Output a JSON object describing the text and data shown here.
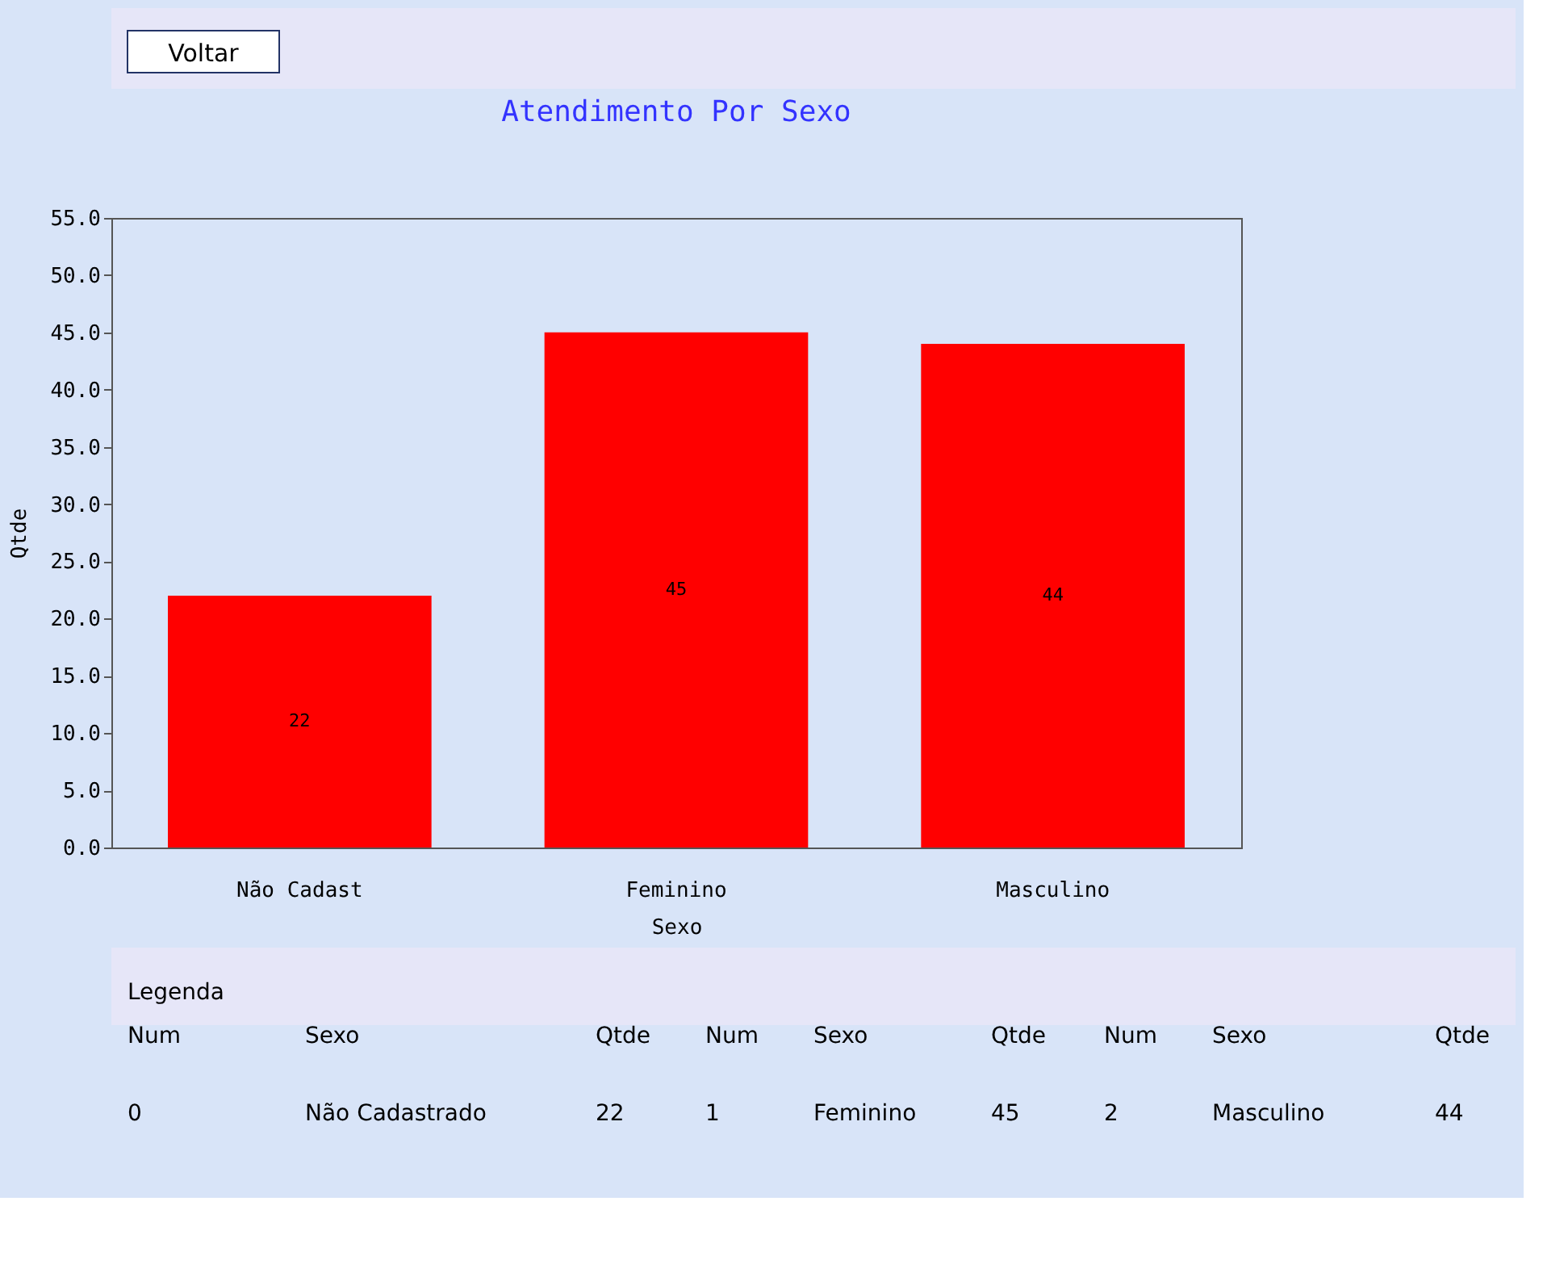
{
  "chart_data": {
    "type": "bar",
    "title": "Atendimento Por Sexo",
    "xlabel": "Sexo",
    "ylabel": "Qtde",
    "categories": [
      "Não Cadast",
      "Feminino",
      "Masculino"
    ],
    "values": [
      22,
      45,
      44
    ],
    "color": "#ff0000",
    "ylim": [
      0,
      55
    ],
    "yticks": [
      {
        "value": 0,
        "label": "0.0"
      },
      {
        "value": 5,
        "label": "5.0"
      },
      {
        "value": 10,
        "label": "10.0"
      },
      {
        "value": 15,
        "label": "15.0"
      },
      {
        "value": 20,
        "label": "20.0"
      },
      {
        "value": 25,
        "label": "25.0"
      },
      {
        "value": 30,
        "label": "30.0"
      },
      {
        "value": 35,
        "label": "35.0"
      },
      {
        "value": 40,
        "label": "40.0"
      },
      {
        "value": 45,
        "label": "45.0"
      },
      {
        "value": 50,
        "label": "50.0"
      },
      {
        "value": 55,
        "label": "55.0"
      }
    ],
    "data_labels": true,
    "grid": false,
    "annotations": [
      "Voltar",
      "Legenda",
      "Num",
      "Sexo",
      "Qtde",
      "Num",
      "Sexo",
      "Qtde",
      "Num",
      "Sexo",
      "Qtde",
      "0",
      "Não Cadastrado",
      "22",
      "1",
      "Feminino",
      "45",
      "2",
      "Masculino",
      "44"
    ]
  }
}
